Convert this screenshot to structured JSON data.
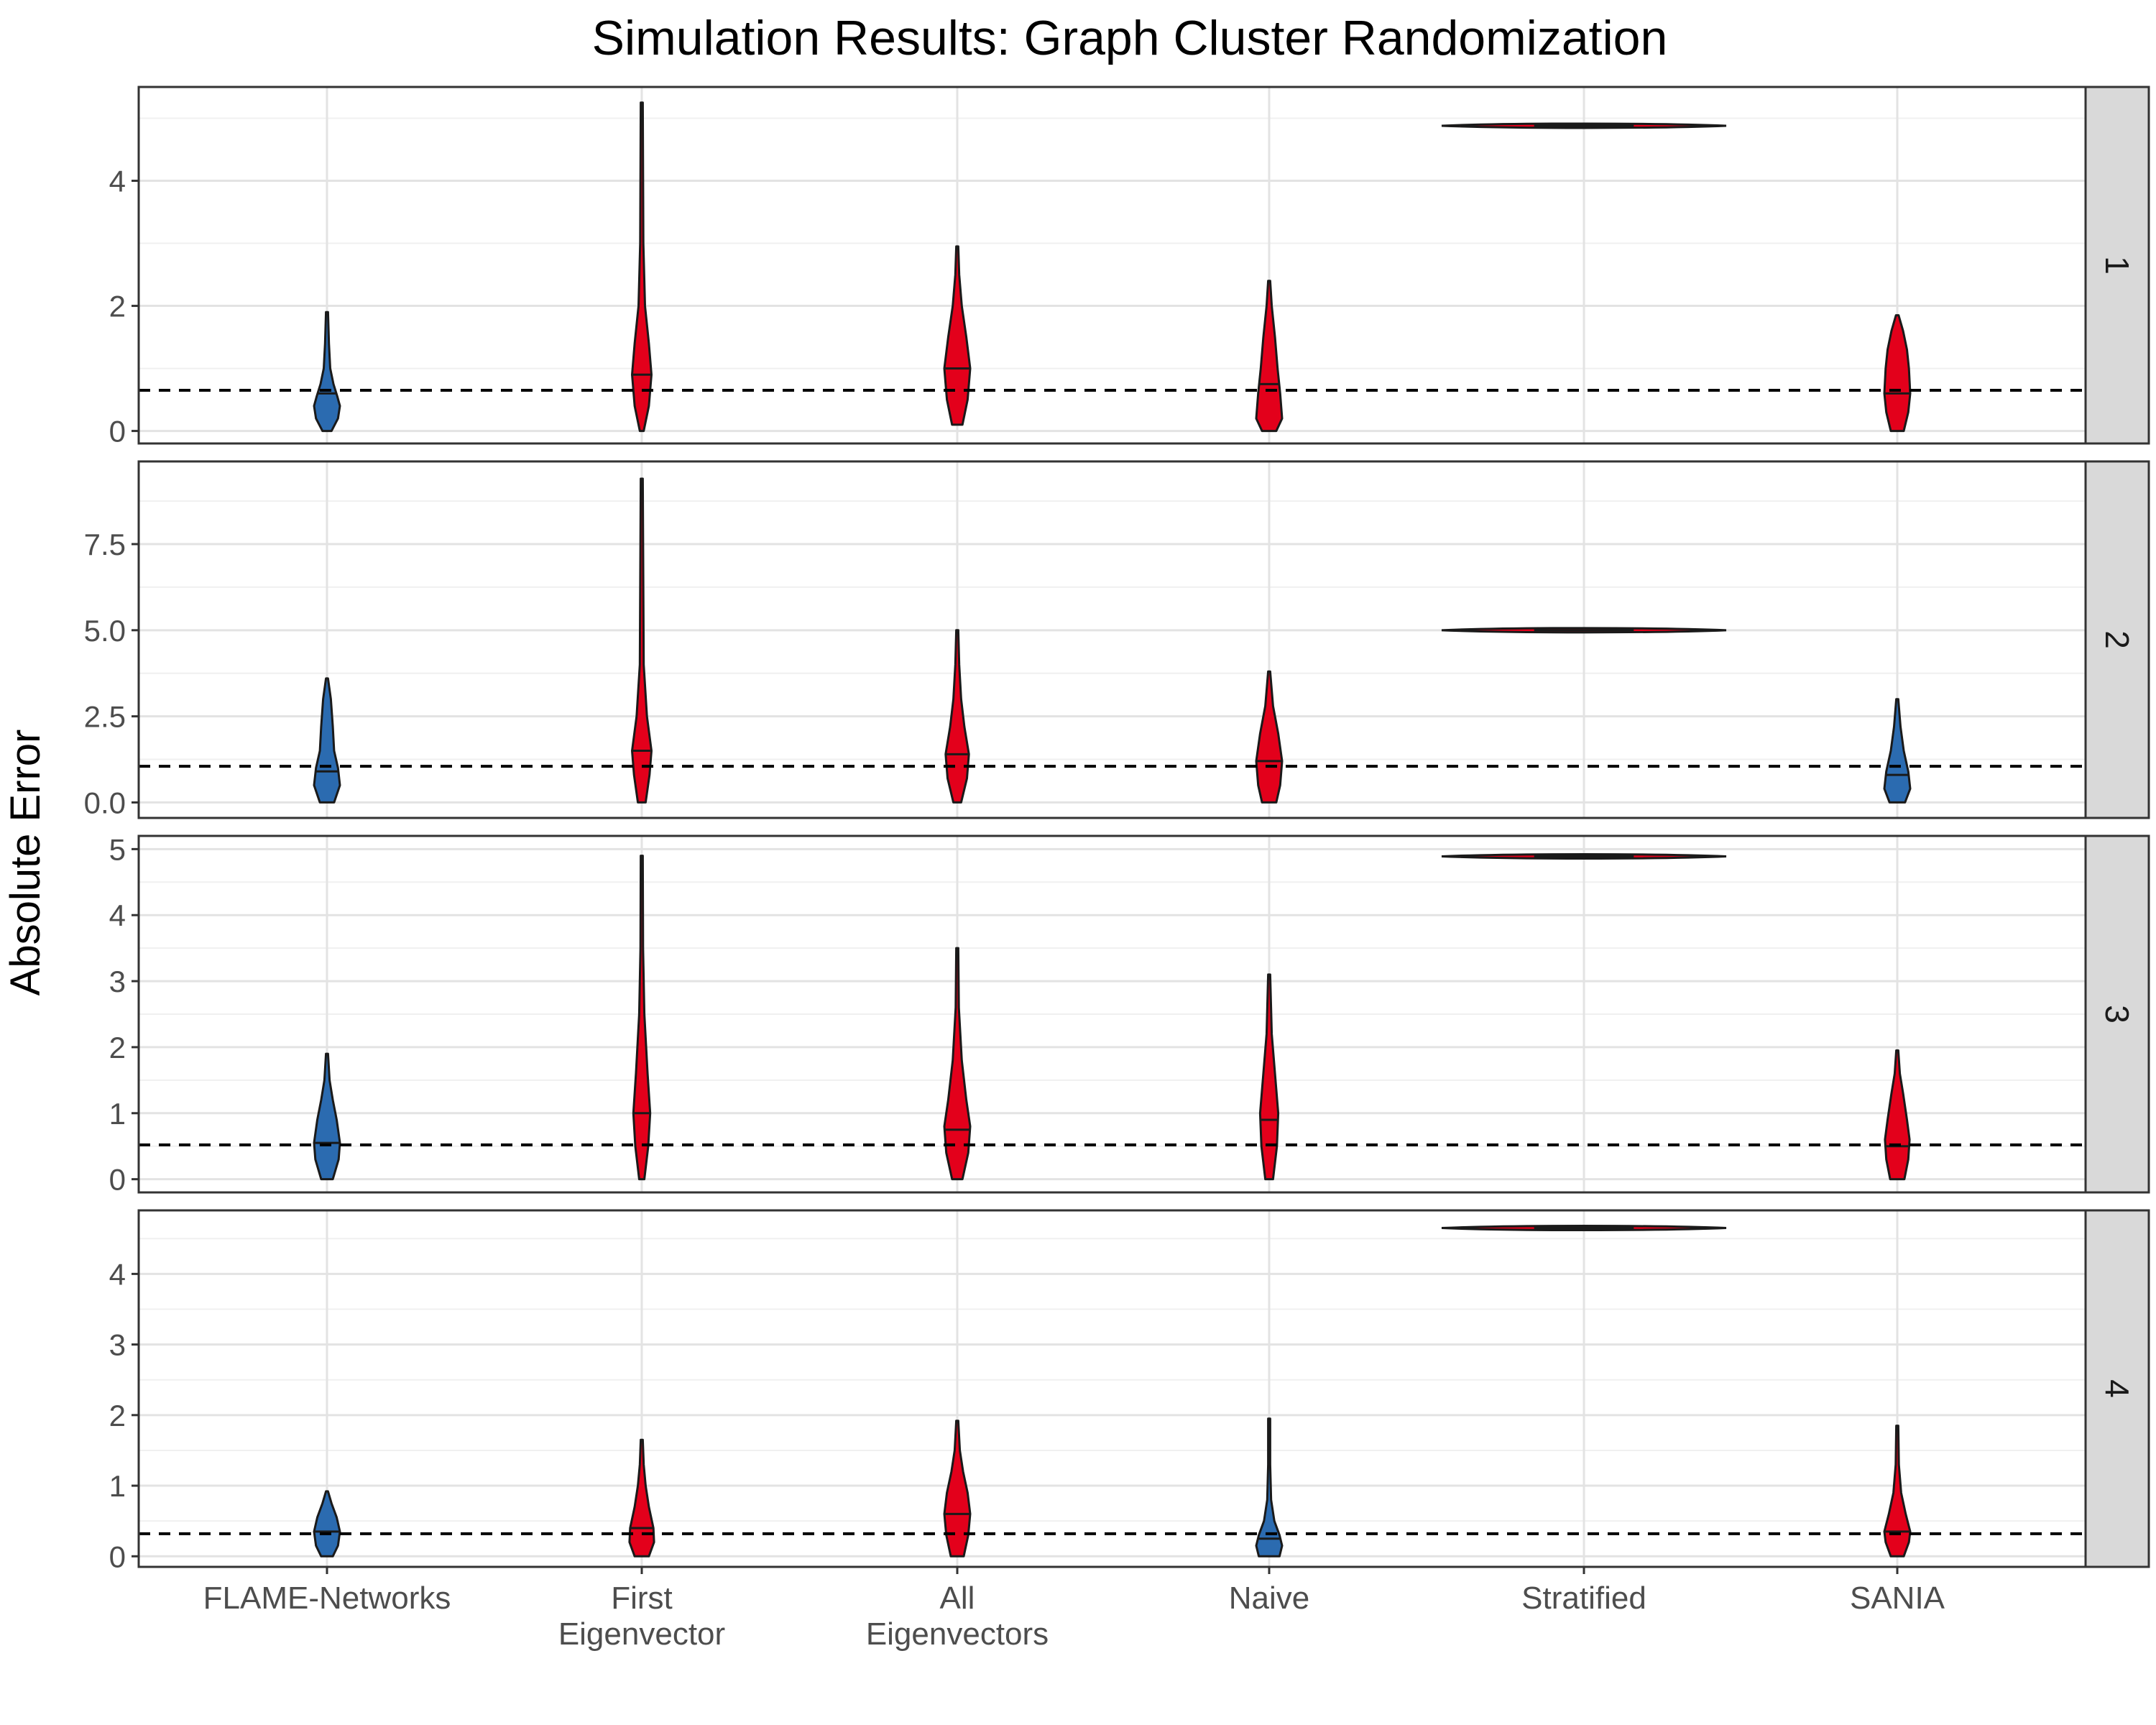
{
  "chart_data": {
    "type": "violin",
    "title": "Simulation Results: Graph Cluster Randomization",
    "xlabel": "",
    "ylabel": "Absolute Error",
    "categories": [
      "FLAME-Networks",
      "First\nEigenvector",
      "All\nEigenvectors",
      "Naive",
      "Stratified",
      "SANIA"
    ],
    "colors": {
      "blue": "#2b6bb0",
      "red": "#e3001b"
    },
    "grid": true,
    "facets": [
      {
        "label": "1",
        "ylim": [
          -0.2,
          5.5
        ],
        "yticks": [
          0,
          2,
          4
        ],
        "reference_line": 0.65,
        "violins": [
          {
            "color": "blue",
            "min": 0.0,
            "max": 1.9,
            "median": 0.6,
            "shape": [
              [
                0,
                0.35
              ],
              [
                0.2,
                0.85
              ],
              [
                0.4,
                1.0
              ],
              [
                0.55,
                0.8
              ],
              [
                0.75,
                0.5
              ],
              [
                1.0,
                0.25
              ],
              [
                1.4,
                0.15
              ],
              [
                1.9,
                0.05
              ]
            ]
          },
          {
            "color": "red",
            "min": 0.0,
            "max": 5.25,
            "median": 0.9,
            "shape": [
              [
                0,
                0.15
              ],
              [
                0.4,
                0.55
              ],
              [
                0.9,
                0.75
              ],
              [
                1.4,
                0.55
              ],
              [
                2.0,
                0.25
              ],
              [
                3.0,
                0.12
              ],
              [
                5.25,
                0.05
              ]
            ]
          },
          {
            "color": "red",
            "min": 0.1,
            "max": 2.95,
            "median": 1.0,
            "shape": [
              [
                0.1,
                0.4
              ],
              [
                0.5,
                0.8
              ],
              [
                1.0,
                1.0
              ],
              [
                1.5,
                0.7
              ],
              [
                2.0,
                0.35
              ],
              [
                2.5,
                0.15
              ],
              [
                2.95,
                0.05
              ]
            ]
          },
          {
            "color": "red",
            "min": 0.0,
            "max": 2.4,
            "median": 0.75,
            "shape": [
              [
                0,
                0.55
              ],
              [
                0.2,
                1.0
              ],
              [
                0.6,
                0.85
              ],
              [
                1.0,
                0.65
              ],
              [
                1.5,
                0.45
              ],
              [
                2.0,
                0.2
              ],
              [
                2.4,
                0.05
              ]
            ]
          },
          {
            "color": "red",
            "min": 4.82,
            "max": 4.95,
            "median": 4.88,
            "shape": [
              [
                4.82,
                0.05
              ],
              [
                4.86,
                1.0
              ],
              [
                4.9,
                0.85
              ],
              [
                4.95,
                0.05
              ]
            ]
          },
          {
            "color": "red",
            "min": 0.0,
            "max": 1.85,
            "median": 0.6,
            "shape": [
              [
                0,
                0.5
              ],
              [
                0.3,
                0.85
              ],
              [
                0.6,
                1.0
              ],
              [
                1.0,
                0.9
              ],
              [
                1.3,
                0.75
              ],
              [
                1.6,
                0.45
              ],
              [
                1.85,
                0.1
              ]
            ]
          }
        ]
      },
      {
        "label": "2",
        "ylim": [
          -0.45,
          9.9
        ],
        "yticks": [
          0.0,
          2.5,
          5.0,
          7.5
        ],
        "ytick_labels": [
          "0.0",
          "2.5",
          "5.0",
          "7.5"
        ],
        "reference_line": 1.05,
        "violins": [
          {
            "color": "blue",
            "min": 0.0,
            "max": 3.6,
            "median": 0.9,
            "shape": [
              [
                0,
                0.55
              ],
              [
                0.5,
                1.0
              ],
              [
                1.0,
                0.85
              ],
              [
                1.5,
                0.55
              ],
              [
                2.2,
                0.45
              ],
              [
                3.0,
                0.3
              ],
              [
                3.6,
                0.05
              ]
            ]
          },
          {
            "color": "red",
            "min": 0.0,
            "max": 9.4,
            "median": 1.5,
            "shape": [
              [
                0,
                0.3
              ],
              [
                0.8,
                0.6
              ],
              [
                1.5,
                0.75
              ],
              [
                2.5,
                0.4
              ],
              [
                4.0,
                0.15
              ],
              [
                9.4,
                0.05
              ]
            ]
          },
          {
            "color": "red",
            "min": 0.0,
            "max": 5.0,
            "median": 1.4,
            "shape": [
              [
                0,
                0.3
              ],
              [
                0.7,
                0.75
              ],
              [
                1.4,
                0.9
              ],
              [
                2.2,
                0.55
              ],
              [
                3.0,
                0.3
              ],
              [
                4.0,
                0.15
              ],
              [
                5.0,
                0.05
              ]
            ]
          },
          {
            "color": "red",
            "min": 0.0,
            "max": 3.8,
            "median": 1.2,
            "shape": [
              [
                0,
                0.55
              ],
              [
                0.5,
                0.85
              ],
              [
                1.2,
                1.0
              ],
              [
                2.0,
                0.7
              ],
              [
                2.8,
                0.3
              ],
              [
                3.8,
                0.05
              ]
            ]
          },
          {
            "color": "red",
            "min": 4.95,
            "max": 5.05,
            "median": 5.0,
            "shape": [
              [
                4.95,
                0.05
              ],
              [
                5.0,
                1.0
              ],
              [
                5.05,
                0.05
              ]
            ]
          },
          {
            "color": "blue",
            "min": 0.0,
            "max": 3.0,
            "median": 0.8,
            "shape": [
              [
                0,
                0.6
              ],
              [
                0.4,
                1.0
              ],
              [
                0.9,
                0.85
              ],
              [
                1.5,
                0.5
              ],
              [
                2.2,
                0.25
              ],
              [
                3.0,
                0.05
              ]
            ]
          }
        ]
      },
      {
        "label": "3",
        "ylim": [
          -0.2,
          5.2
        ],
        "yticks": [
          0,
          1,
          2,
          3,
          4,
          5
        ],
        "reference_line": 0.52,
        "violins": [
          {
            "color": "blue",
            "min": 0.0,
            "max": 1.9,
            "median": 0.55,
            "shape": [
              [
                0,
                0.45
              ],
              [
                0.3,
                0.9
              ],
              [
                0.55,
                1.0
              ],
              [
                0.9,
                0.75
              ],
              [
                1.2,
                0.45
              ],
              [
                1.5,
                0.2
              ],
              [
                1.9,
                0.05
              ]
            ]
          },
          {
            "color": "red",
            "min": 0.0,
            "max": 4.9,
            "median": 1.0,
            "shape": [
              [
                0,
                0.2
              ],
              [
                0.5,
                0.5
              ],
              [
                1.0,
                0.65
              ],
              [
                1.6,
                0.45
              ],
              [
                2.5,
                0.2
              ],
              [
                3.5,
                0.1
              ],
              [
                4.9,
                0.05
              ]
            ]
          },
          {
            "color": "red",
            "min": 0.0,
            "max": 3.5,
            "median": 0.75,
            "shape": [
              [
                0,
                0.4
              ],
              [
                0.4,
                0.85
              ],
              [
                0.8,
                1.0
              ],
              [
                1.2,
                0.7
              ],
              [
                1.8,
                0.35
              ],
              [
                2.6,
                0.12
              ],
              [
                3.5,
                0.05
              ]
            ]
          },
          {
            "color": "red",
            "min": 0.0,
            "max": 3.1,
            "median": 0.9,
            "shape": [
              [
                0,
                0.3
              ],
              [
                0.5,
                0.6
              ],
              [
                1.0,
                0.7
              ],
              [
                1.6,
                0.45
              ],
              [
                2.2,
                0.2
              ],
              [
                3.1,
                0.05
              ]
            ]
          },
          {
            "color": "red",
            "min": 4.85,
            "max": 4.92,
            "median": 4.89,
            "shape": [
              [
                4.85,
                0.05
              ],
              [
                4.89,
                1.0
              ],
              [
                4.92,
                0.05
              ]
            ]
          },
          {
            "color": "red",
            "min": 0.0,
            "max": 1.95,
            "median": 0.5,
            "shape": [
              [
                0,
                0.55
              ],
              [
                0.3,
                0.85
              ],
              [
                0.6,
                0.95
              ],
              [
                0.9,
                0.75
              ],
              [
                1.3,
                0.45
              ],
              [
                1.6,
                0.2
              ],
              [
                1.95,
                0.05
              ]
            ]
          }
        ]
      },
      {
        "label": "4",
        "ylim": [
          -0.15,
          4.9
        ],
        "yticks": [
          0,
          1,
          2,
          3,
          4
        ],
        "reference_line": 0.32,
        "violins": [
          {
            "color": "blue",
            "min": 0.0,
            "max": 0.92,
            "median": 0.35,
            "shape": [
              [
                0,
                0.45
              ],
              [
                0.15,
                0.85
              ],
              [
                0.35,
                1.0
              ],
              [
                0.55,
                0.75
              ],
              [
                0.75,
                0.35
              ],
              [
                0.92,
                0.05
              ]
            ]
          },
          {
            "color": "red",
            "min": 0.0,
            "max": 1.65,
            "median": 0.4,
            "shape": [
              [
                0,
                0.55
              ],
              [
                0.2,
                0.95
              ],
              [
                0.4,
                0.9
              ],
              [
                0.7,
                0.55
              ],
              [
                1.0,
                0.3
              ],
              [
                1.3,
                0.15
              ],
              [
                1.65,
                0.05
              ]
            ]
          },
          {
            "color": "red",
            "min": 0.0,
            "max": 1.92,
            "median": 0.6,
            "shape": [
              [
                0,
                0.5
              ],
              [
                0.3,
                0.85
              ],
              [
                0.6,
                1.0
              ],
              [
                0.9,
                0.8
              ],
              [
                1.2,
                0.45
              ],
              [
                1.5,
                0.2
              ],
              [
                1.92,
                0.05
              ]
            ]
          },
          {
            "color": "blue",
            "min": 0.0,
            "max": 1.95,
            "median": 0.25,
            "shape": [
              [
                0,
                0.8
              ],
              [
                0.15,
                1.0
              ],
              [
                0.3,
                0.8
              ],
              [
                0.5,
                0.4
              ],
              [
                0.8,
                0.15
              ],
              [
                1.3,
                0.08
              ],
              [
                1.95,
                0.03
              ]
            ]
          },
          {
            "color": "red",
            "min": 4.6,
            "max": 4.7,
            "median": 4.65,
            "shape": [
              [
                4.6,
                0.05
              ],
              [
                4.65,
                1.0
              ],
              [
                4.7,
                0.05
              ]
            ]
          },
          {
            "color": "red",
            "min": 0.0,
            "max": 1.85,
            "median": 0.35,
            "shape": [
              [
                0,
                0.5
              ],
              [
                0.2,
                0.9
              ],
              [
                0.35,
                1.0
              ],
              [
                0.6,
                0.65
              ],
              [
                0.9,
                0.3
              ],
              [
                1.3,
                0.12
              ],
              [
                1.85,
                0.04
              ]
            ]
          }
        ]
      }
    ]
  }
}
